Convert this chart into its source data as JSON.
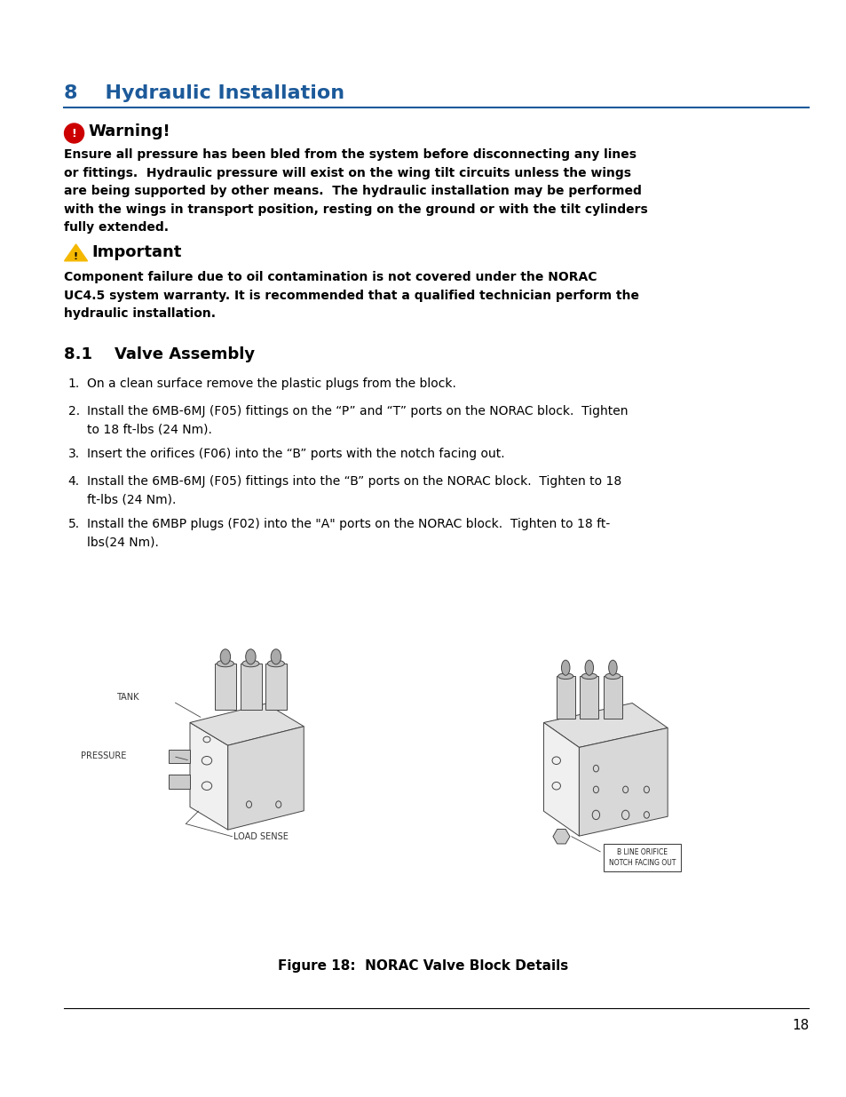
{
  "bg_color": "#ffffff",
  "ml": 0.075,
  "mr": 0.955,
  "heading_color": "#1c5a9a",
  "heading_text": "8    Hydraulic Installation",
  "heading_fontsize": 16,
  "rule_color": "#1c5a9a",
  "warning_title": "Warning!",
  "warning_body": "Ensure all pressure has been bled from the system before disconnecting any lines\nor fittings.  Hydraulic pressure will exist on the wing tilt circuits unless the wings\nare being supported by other means.  The hydraulic installation may be performed\nwith the wings in transport position, resting on the ground or with the tilt cylinders\nfully extended.",
  "important_title": "Important",
  "important_body": "Component failure due to oil contamination is not covered under the NORAC\nUC4.5 system warranty. It is recommended that a qualified technician perform the\nhydraulic installation.",
  "subheading_text": "8.1    Valve Assembly",
  "subheading_fontsize": 13,
  "items": [
    "On a clean surface remove the plastic plugs from the block.",
    "Install the 6MB-6MJ (F05) fittings on the “P” and “T” ports on the NORAC block.  Tighten\nto 18 ft-lbs (24 Nm).",
    "Insert the orifices (F06) into the “B” ports with the notch facing out.",
    "Install the 6MB-6MJ (F05) fittings into the “B” ports on the NORAC block.  Tighten to 18\nft-lbs (24 Nm).",
    "Install the 6MBP plugs (F02) into the \"A\" ports on the NORAC block.  Tighten to 18 ft-\nlbs(24 Nm)."
  ],
  "figure_caption": "Figure 18:  NORAC Valve Block Details",
  "page_number": "18",
  "body_fontsize": 10.0
}
